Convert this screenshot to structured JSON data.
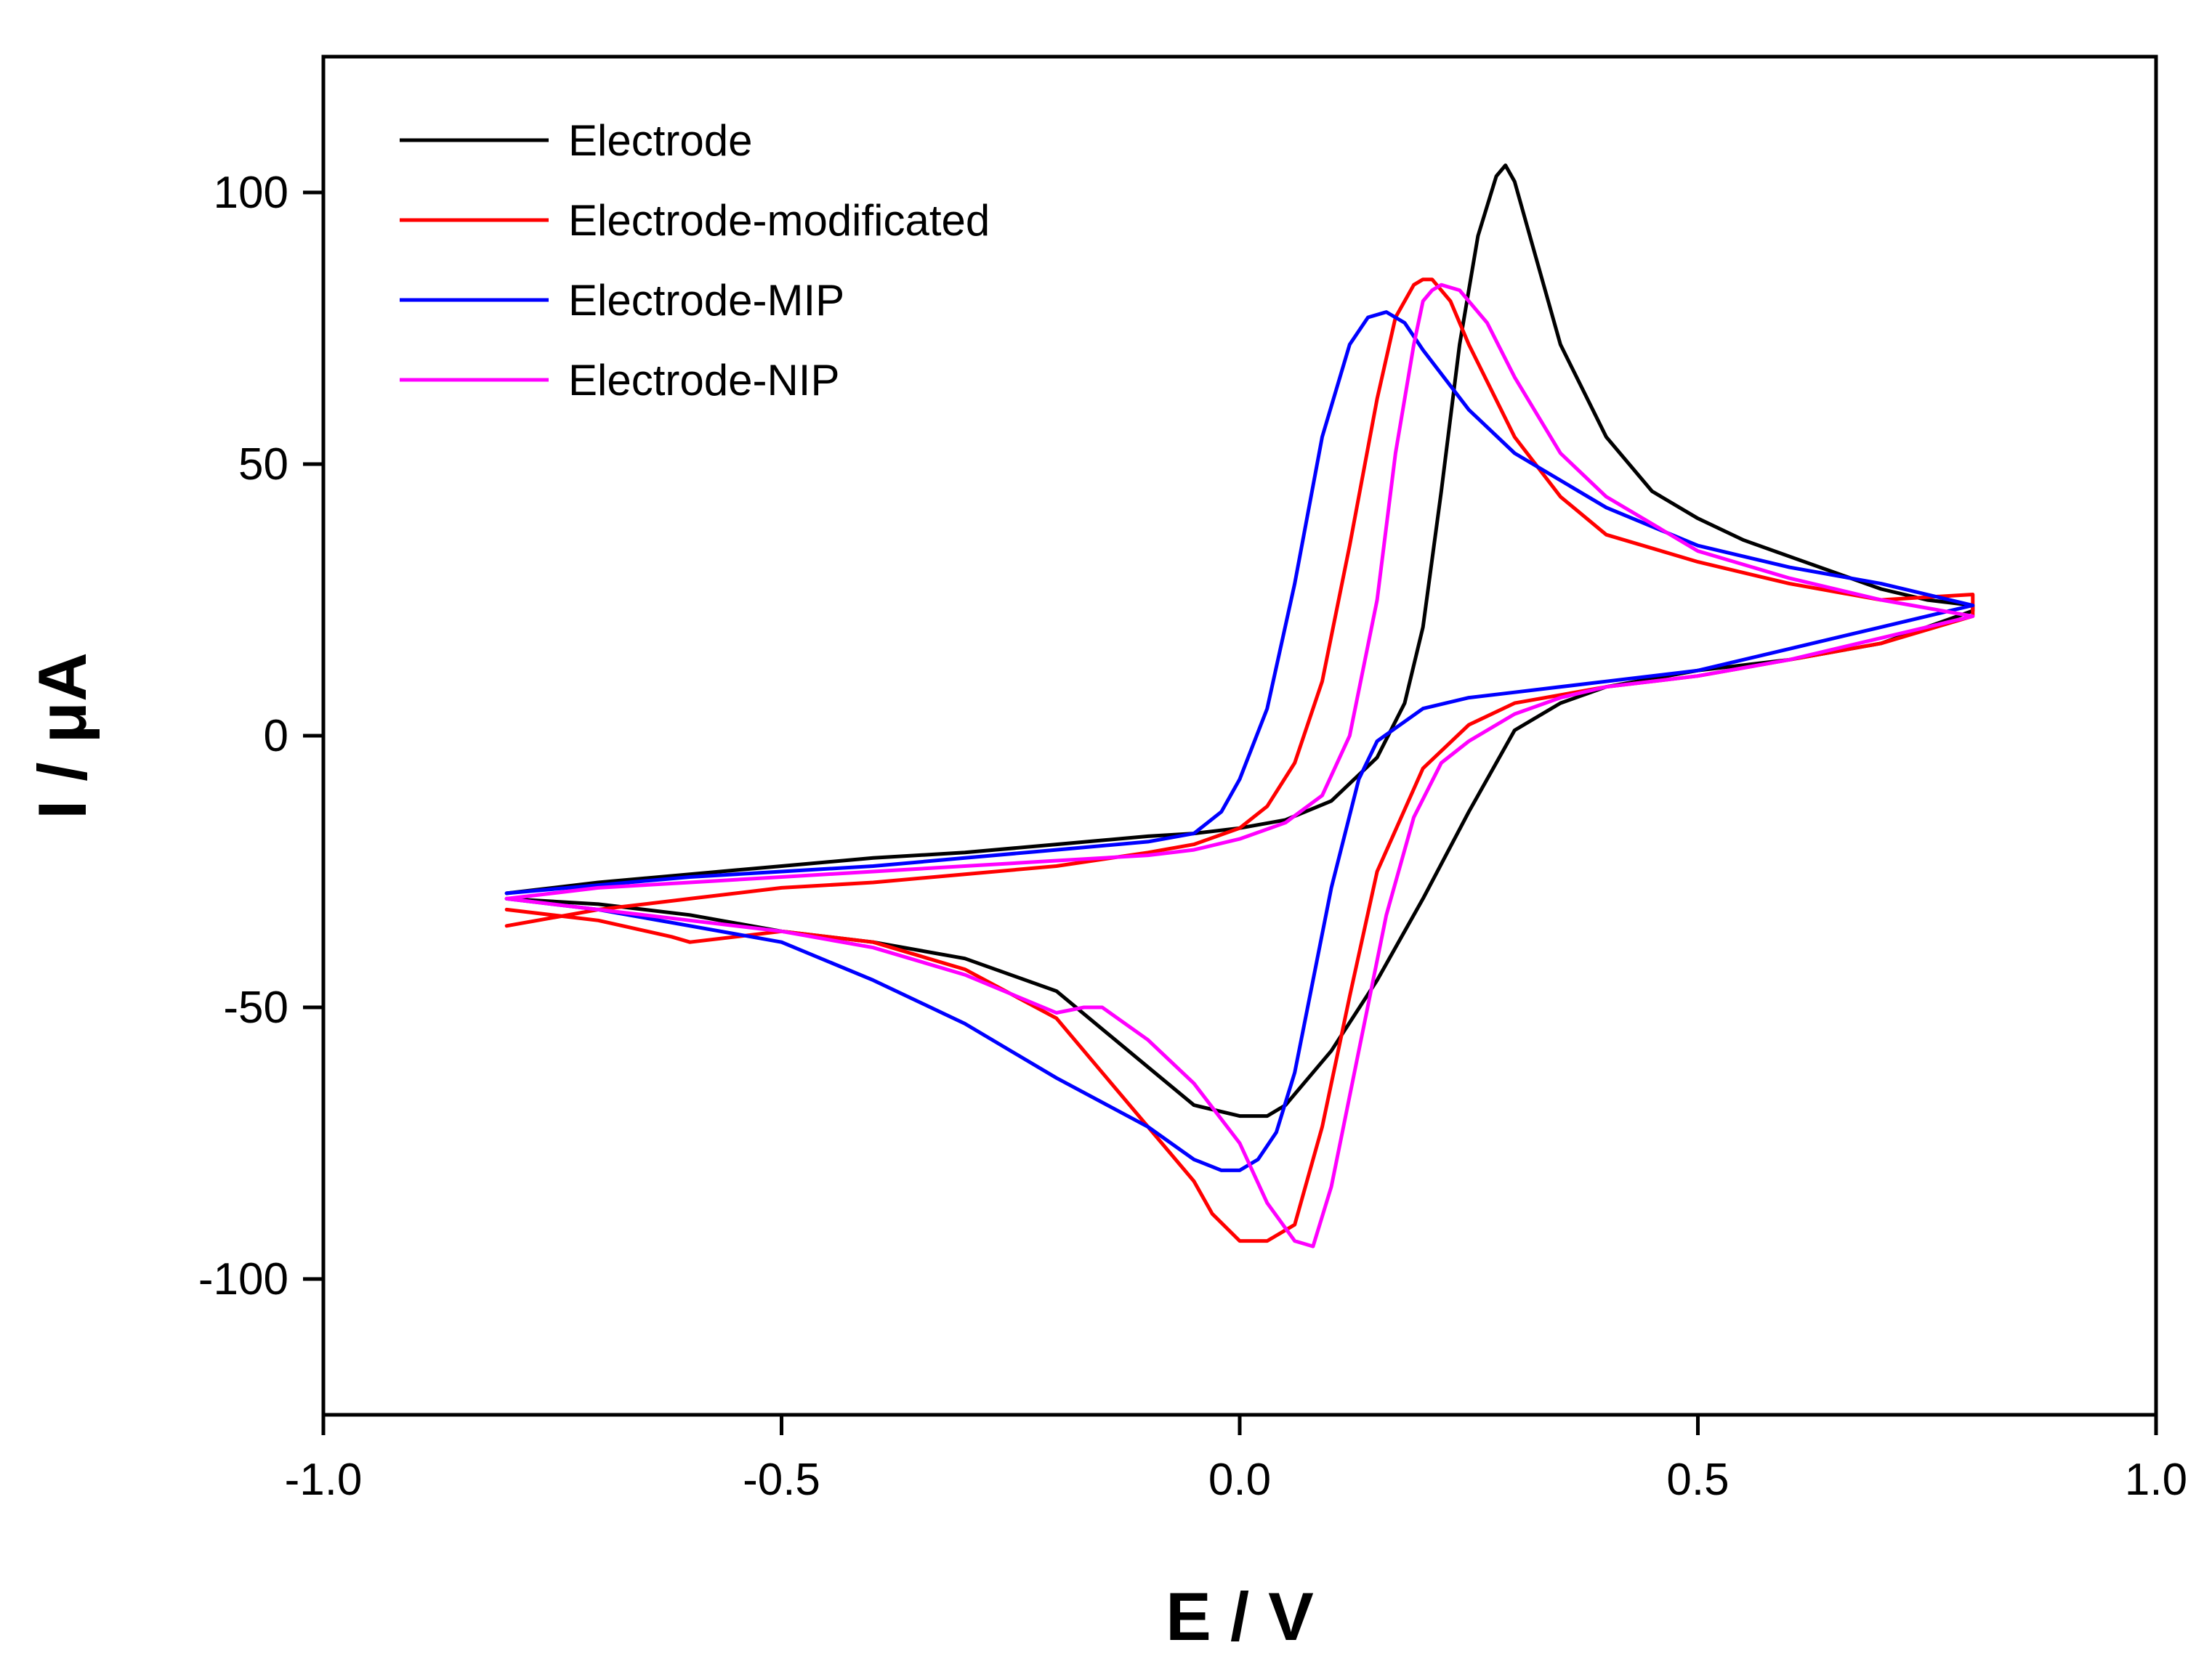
{
  "chart_data": {
    "type": "line",
    "title": "",
    "xlabel": "E / V",
    "ylabel": "I / μA",
    "xlim": [
      -1.0,
      1.0
    ],
    "ylim": [
      -125,
      125
    ],
    "xticks": [
      -1.0,
      -0.5,
      0.0,
      0.5,
      1.0
    ],
    "xtick_labels": [
      "-1.0",
      "-0.5",
      "0.0",
      "0.5",
      "1.0"
    ],
    "yticks": [
      -100,
      -50,
      0,
      50,
      100
    ],
    "ytick_labels": [
      "-100",
      "-50",
      "0",
      "50",
      "100"
    ],
    "grid": false,
    "legend_position": "top-left",
    "series": [
      {
        "name": "Electrode",
        "color": "#000000",
        "x": [
          -0.8,
          -0.7,
          -0.6,
          -0.5,
          -0.4,
          -0.3,
          -0.2,
          -0.1,
          -0.05,
          0.0,
          0.05,
          0.1,
          0.15,
          0.18,
          0.2,
          0.22,
          0.24,
          0.26,
          0.28,
          0.29,
          0.3,
          0.32,
          0.35,
          0.4,
          0.45,
          0.5,
          0.55,
          0.6,
          0.65,
          0.7,
          0.75,
          0.8,
          0.8,
          0.75,
          0.7,
          0.6,
          0.5,
          0.4,
          0.35,
          0.3,
          0.25,
          0.2,
          0.15,
          0.1,
          0.05,
          0.03,
          0.0,
          -0.05,
          -0.1,
          -0.15,
          -0.2,
          -0.3,
          -0.4,
          -0.5,
          -0.6,
          -0.7,
          -0.8
        ],
        "y": [
          -29,
          -27,
          -25.5,
          -24,
          -22.5,
          -21.5,
          -20,
          -18.5,
          -18,
          -17,
          -15.5,
          -12,
          -4,
          6,
          20,
          45,
          72,
          92,
          103,
          105,
          102,
          90,
          72,
          55,
          45,
          40,
          36,
          33,
          30,
          27,
          25,
          24,
          23,
          20,
          17,
          14,
          12,
          9,
          6,
          1,
          -14,
          -30,
          -45,
          -58,
          -68,
          -70,
          -70,
          -68,
          -61,
          -54,
          -47,
          -41,
          -38,
          -36,
          -33,
          -31,
          -30
        ]
      },
      {
        "name": "Electrode-modificated",
        "color": "#ff0000",
        "x": [
          -0.8,
          -0.7,
          -0.6,
          -0.5,
          -0.4,
          -0.3,
          -0.2,
          -0.1,
          -0.05,
          0.0,
          0.03,
          0.06,
          0.09,
          0.12,
          0.15,
          0.17,
          0.19,
          0.2,
          0.21,
          0.23,
          0.25,
          0.3,
          0.35,
          0.4,
          0.5,
          0.6,
          0.7,
          0.8,
          0.8,
          0.7,
          0.6,
          0.5,
          0.4,
          0.3,
          0.25,
          0.2,
          0.15,
          0.12,
          0.09,
          0.06,
          0.03,
          0.0,
          -0.03,
          -0.05,
          -0.1,
          -0.15,
          -0.2,
          -0.3,
          -0.4,
          -0.5,
          -0.6,
          -0.62,
          -0.7,
          -0.8
        ],
        "y": [
          -35,
          -32,
          -30,
          -28,
          -27,
          -25.5,
          -24,
          -21.5,
          -20,
          -17,
          -13,
          -5,
          10,
          35,
          62,
          77,
          83,
          84,
          84,
          80,
          72,
          55,
          44,
          37,
          32,
          28,
          25,
          26,
          22,
          17,
          14,
          11,
          9,
          6,
          2,
          -6,
          -25,
          -48,
          -72,
          -90,
          -93,
          -93,
          -88,
          -82,
          -72,
          -62,
          -52,
          -43,
          -38,
          -36,
          -38,
          -37,
          -34,
          -32
        ]
      },
      {
        "name": "Electrode-MIP",
        "color": "#0000ff",
        "x": [
          -0.8,
          -0.7,
          -0.6,
          -0.5,
          -0.4,
          -0.3,
          -0.2,
          -0.1,
          -0.05,
          -0.02,
          0.0,
          0.03,
          0.06,
          0.09,
          0.12,
          0.14,
          0.16,
          0.18,
          0.2,
          0.25,
          0.3,
          0.4,
          0.5,
          0.6,
          0.7,
          0.8,
          0.8,
          0.7,
          0.6,
          0.5,
          0.4,
          0.3,
          0.25,
          0.2,
          0.15,
          0.13,
          0.1,
          0.08,
          0.06,
          0.04,
          0.02,
          0.0,
          -0.02,
          -0.05,
          -0.1,
          -0.2,
          -0.3,
          -0.4,
          -0.5,
          -0.6,
          -0.7,
          -0.8
        ],
        "y": [
          -29,
          -27.5,
          -26,
          -25,
          -24,
          -22.5,
          -21,
          -19.5,
          -18,
          -14,
          -8,
          5,
          28,
          55,
          72,
          77,
          78,
          76,
          71,
          60,
          52,
          42,
          35,
          31,
          28,
          24,
          24,
          20,
          16,
          12,
          10,
          8,
          7,
          5,
          -1,
          -8,
          -28,
          -45,
          -62,
          -73,
          -78,
          -80,
          -80,
          -78,
          -72,
          -63,
          -53,
          -45,
          -38,
          -35,
          -32,
          -30
        ]
      },
      {
        "name": "Electrode-NIP",
        "color": "#ff00ff",
        "x": [
          -0.8,
          -0.7,
          -0.6,
          -0.5,
          -0.4,
          -0.3,
          -0.2,
          -0.1,
          -0.05,
          0.0,
          0.05,
          0.09,
          0.12,
          0.15,
          0.17,
          0.19,
          0.2,
          0.21,
          0.22,
          0.24,
          0.27,
          0.3,
          0.35,
          0.4,
          0.5,
          0.6,
          0.7,
          0.8,
          0.8,
          0.7,
          0.6,
          0.5,
          0.4,
          0.35,
          0.3,
          0.25,
          0.22,
          0.19,
          0.16,
          0.13,
          0.1,
          0.08,
          0.06,
          0.03,
          0.0,
          -0.05,
          -0.1,
          -0.15,
          -0.17,
          -0.2,
          -0.3,
          -0.4,
          -0.5,
          -0.6,
          -0.7,
          -0.8
        ],
        "y": [
          -30,
          -28,
          -27,
          -26,
          -25,
          -24,
          -23,
          -22,
          -21,
          -19,
          -16,
          -11,
          0,
          25,
          52,
          72,
          80,
          82,
          83,
          82,
          76,
          66,
          52,
          44,
          34,
          29,
          25,
          22,
          22,
          18,
          14,
          11,
          9,
          7,
          4,
          -1,
          -5,
          -15,
          -33,
          -58,
          -83,
          -94,
          -93,
          -86,
          -75,
          -64,
          -56,
          -50,
          -50,
          -51,
          -44,
          -39,
          -36,
          -34,
          -32,
          -30
        ]
      }
    ]
  }
}
